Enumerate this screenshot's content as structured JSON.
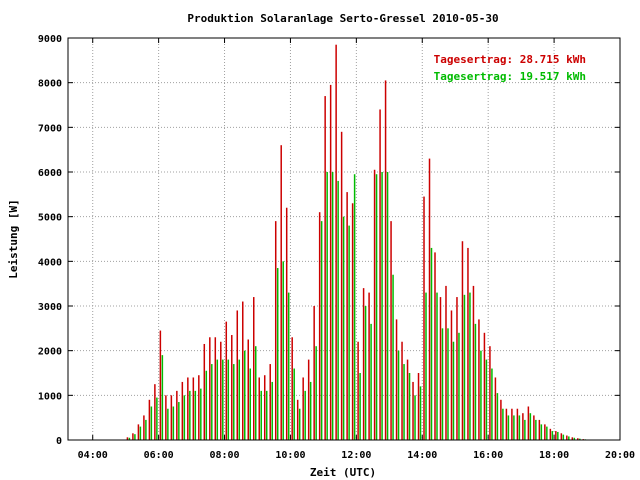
{
  "chart_data": {
    "type": "bar",
    "title": "Produktion Solaranlage Serto-Gressel 2010-05-30",
    "xlabel": "Zeit (UTC)",
    "ylabel": "Leistung [W]",
    "xlim": [
      3.25,
      20.0
    ],
    "ylim": [
      0,
      9000
    ],
    "x_tick_labels": [
      "04:00",
      "06:00",
      "08:00",
      "10:00",
      "12:00",
      "14:00",
      "16:00",
      "18:00",
      "20:00"
    ],
    "x_tick_values": [
      4,
      6,
      8,
      10,
      12,
      14,
      16,
      18,
      20
    ],
    "y_tick_labels": [
      "0",
      "1000",
      "2000",
      "3000",
      "4000",
      "5000",
      "6000",
      "7000",
      "8000",
      "9000"
    ],
    "y_tick_values": [
      0,
      1000,
      2000,
      3000,
      4000,
      5000,
      6000,
      7000,
      8000,
      9000
    ],
    "grid": true,
    "legend_position": "top-right",
    "colors": {
      "series1": "#cc0000",
      "series2": "#00bb00"
    },
    "legend": [
      {
        "text": "Tagesertrag: 28.715 kWh",
        "color": "#cc0000"
      },
      {
        "text": "Tagesertrag: 19.517 kWh",
        "color": "#00bb00"
      }
    ],
    "x": [
      "05:05",
      "05:15",
      "05:25",
      "05:35",
      "05:45",
      "05:55",
      "06:05",
      "06:15",
      "06:25",
      "06:35",
      "06:45",
      "06:55",
      "07:05",
      "07:15",
      "07:25",
      "07:35",
      "07:45",
      "07:55",
      "08:05",
      "08:15",
      "08:25",
      "08:35",
      "08:45",
      "08:55",
      "09:05",
      "09:15",
      "09:25",
      "09:35",
      "09:45",
      "09:55",
      "10:05",
      "10:15",
      "10:25",
      "10:35",
      "10:45",
      "10:55",
      "11:05",
      "11:15",
      "11:25",
      "11:35",
      "11:45",
      "11:55",
      "12:05",
      "12:15",
      "12:25",
      "12:35",
      "12:45",
      "12:55",
      "13:05",
      "13:15",
      "13:25",
      "13:35",
      "13:45",
      "13:55",
      "14:05",
      "14:15",
      "14:25",
      "14:35",
      "14:45",
      "14:55",
      "15:05",
      "15:15",
      "15:25",
      "15:35",
      "15:45",
      "15:55",
      "16:05",
      "16:15",
      "16:25",
      "16:35",
      "16:45",
      "16:55",
      "17:05",
      "17:15",
      "17:25",
      "17:35",
      "17:45",
      "17:55",
      "18:05",
      "18:15",
      "18:25",
      "18:35",
      "18:45",
      "18:55"
    ],
    "series": [
      {
        "name": "",
        "values": [
          60,
          150,
          350,
          550,
          900,
          1250,
          2450,
          1000,
          1000,
          1100,
          1300,
          1400,
          1400,
          1450,
          2150,
          2300,
          2300,
          2200,
          2650,
          2350,
          2900,
          3100,
          2250,
          3200,
          1400,
          1450,
          1700,
          4900,
          6600,
          5200,
          2300,
          900,
          1400,
          1800,
          3000,
          5100,
          7700,
          7950,
          8850,
          6900,
          5550,
          5300,
          2200,
          3400,
          3300,
          6050,
          7400,
          8050,
          4900,
          2700,
          2200,
          1800,
          1300,
          1500,
          5450,
          6300,
          4200,
          3200,
          3450,
          2900,
          3200,
          4450,
          4300,
          3450,
          2700,
          2400,
          2100,
          1400,
          900,
          700,
          700,
          700,
          600,
          750,
          550,
          450,
          350,
          250,
          200,
          150,
          100,
          60,
          40,
          20
        ]
      },
      {
        "name": "",
        "values": [
          50,
          130,
          300,
          450,
          750,
          950,
          1900,
          700,
          750,
          850,
          1000,
          1100,
          1100,
          1150,
          1550,
          1700,
          1800,
          1800,
          1800,
          1700,
          1800,
          2000,
          1600,
          2100,
          1100,
          1100,
          1300,
          3850,
          4000,
          3300,
          1600,
          700,
          1100,
          1300,
          2100,
          4900,
          6000,
          6000,
          5800,
          5000,
          4800,
          5950,
          1500,
          3000,
          2600,
          5950,
          6000,
          6000,
          3700,
          2000,
          1700,
          1500,
          1000,
          1200,
          3300,
          4300,
          3300,
          2500,
          2500,
          2200,
          2400,
          3250,
          3300,
          2600,
          2000,
          1800,
          1600,
          1050,
          700,
          550,
          550,
          550,
          450,
          600,
          450,
          350,
          300,
          200,
          180,
          120,
          80,
          50,
          30,
          15
        ]
      }
    ]
  }
}
